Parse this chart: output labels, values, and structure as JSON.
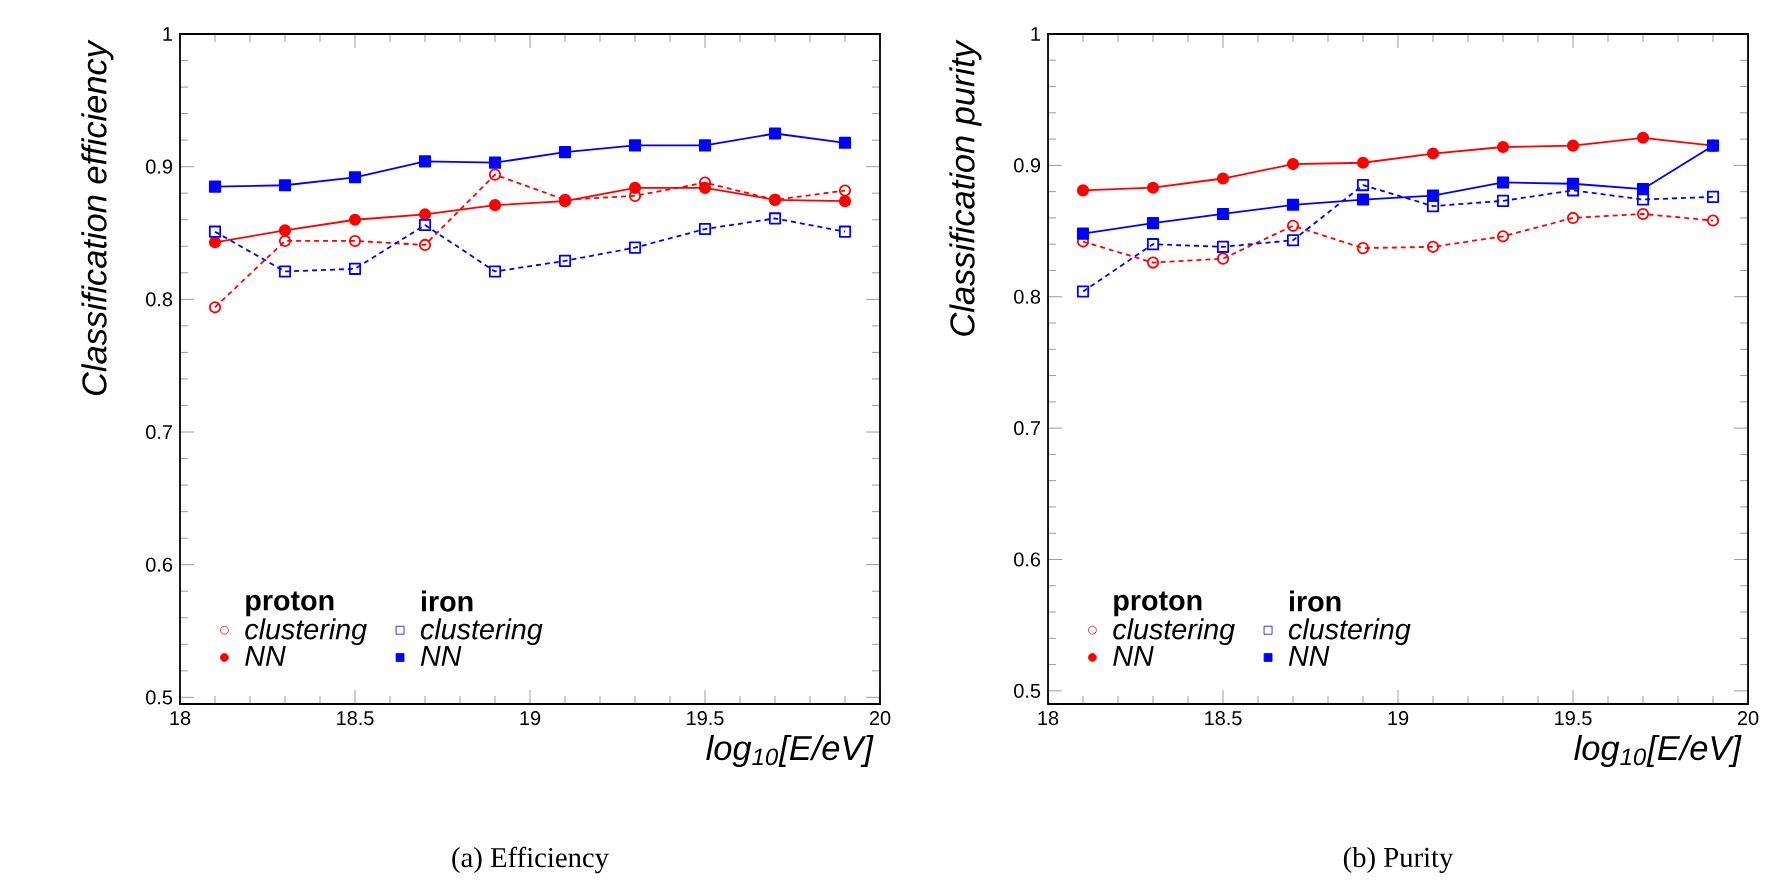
{
  "chart_data": [
    {
      "type": "line",
      "xlabel": "log$_{10}$[E/eV]",
      "ylabel": "Classification efficiency",
      "legend": "bottom left",
      "xlim": [
        18,
        20
      ],
      "ylim": [
        0.495,
        1
      ],
      "xticks": [
        18,
        18.5,
        19,
        19.5,
        20
      ],
      "yticks": [
        0.5,
        0.6,
        0.7,
        0.8,
        0.9,
        1
      ],
      "x": [
        18.1,
        18.3,
        18.5,
        18.7,
        18.9,
        19.1,
        19.3,
        19.5,
        19.7,
        19.9
      ],
      "annotations": [
        "proton",
        "iron",
        "(a)  Efficiency"
      ],
      "series": [
        {
          "name": "clustering",
          "color": "#ff0000",
          "marker": "circle",
          "line_style": "dashed",
          "values": [
            0.794,
            0.844,
            0.844,
            0.841,
            0.894,
            0.875,
            0.878,
            0.888,
            0.875,
            0.882
          ]
        },
        {
          "name": "NN",
          "color": "#ff0000",
          "marker": "circle",
          "line_style": "solid",
          "values": [
            0.843,
            0.852,
            0.86,
            0.864,
            0.871,
            0.874,
            0.884,
            0.884,
            0.875,
            0.874
          ]
        },
        {
          "name": "clustering",
          "color": "#0000ff",
          "marker": "square",
          "line_style": "dashed",
          "values": [
            0.851,
            0.821,
            0.823,
            0.856,
            0.821,
            0.829,
            0.839,
            0.853,
            0.861,
            0.851
          ]
        },
        {
          "name": "NN",
          "color": "#0000ff",
          "marker": "square",
          "line_style": "solid",
          "values": [
            0.885,
            0.886,
            0.892,
            0.904,
            0.903,
            0.911,
            0.916,
            0.916,
            0.925,
            0.918
          ]
        }
      ]
    },
    {
      "type": "line",
      "xlabel": "log$_{10}$[E/eV]",
      "ylabel": "Classification purity",
      "legend": "bottom left",
      "xlim": [
        18,
        20
      ],
      "ylim": [
        0.49,
        1
      ],
      "xticks": [
        18,
        18.5,
        19,
        19.5,
        20
      ],
      "yticks": [
        0.5,
        0.6,
        0.7,
        0.8,
        0.9,
        1
      ],
      "x": [
        18.1,
        18.3,
        18.5,
        18.7,
        18.9,
        19.1,
        19.3,
        19.5,
        19.7,
        19.9
      ],
      "annotations": [
        "proton",
        "iron",
        "(b)  Purity"
      ],
      "series": [
        {
          "name": "clustering",
          "color": "#ff0000",
          "marker": "circle",
          "line_style": "dashed",
          "values": [
            0.842,
            0.826,
            0.829,
            0.854,
            0.837,
            0.838,
            0.846,
            0.86,
            0.863,
            0.858
          ]
        },
        {
          "name": "NN",
          "color": "#ff0000",
          "marker": "circle",
          "line_style": "solid",
          "values": [
            0.881,
            0.883,
            0.89,
            0.901,
            0.902,
            0.909,
            0.914,
            0.915,
            0.921,
            0.915
          ]
        },
        {
          "name": "clustering",
          "color": "#0000ff",
          "marker": "square",
          "line_style": "dashed",
          "values": [
            0.804,
            0.84,
            0.838,
            0.843,
            0.885,
            0.869,
            0.873,
            0.881,
            0.874,
            0.876
          ]
        },
        {
          "name": "NN",
          "color": "#0000ff",
          "marker": "square",
          "line_style": "solid",
          "values": [
            0.848,
            0.856,
            0.863,
            0.87,
            0.874,
            0.877,
            0.887,
            0.886,
            0.882,
            0.915
          ]
        }
      ]
    }
  ]
}
